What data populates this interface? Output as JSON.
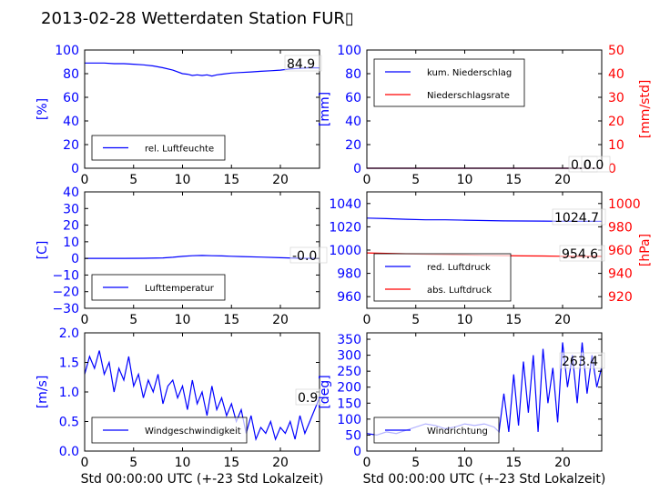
{
  "page": {
    "title": "2013-02-28 Wetterdaten Station FUR▯"
  },
  "chart_data": [
    {
      "type": "line",
      "ylabel": "[%]",
      "xlim": [
        0,
        24
      ],
      "ylim": [
        0,
        100
      ],
      "xticks": [
        "0",
        "5",
        "10",
        "15",
        "20"
      ],
      "yticks": [
        "0",
        "20",
        "40",
        "60",
        "80",
        "100"
      ],
      "legend": "lower-left",
      "annotations": [
        "84.9"
      ],
      "series": [
        {
          "name": "rel. Luftfeuchte",
          "color": "#0000ff",
          "x": [
            0,
            1,
            2,
            3,
            4,
            5,
            6,
            7,
            8,
            9,
            10,
            10.5,
            11,
            11.5,
            12,
            12.5,
            13,
            13.5,
            14,
            15,
            16,
            17,
            18,
            19,
            20,
            21,
            22,
            23,
            24
          ],
          "y": [
            89,
            89,
            89,
            88.5,
            88.5,
            88,
            87.5,
            86.5,
            85,
            83,
            80,
            79.5,
            78.5,
            79,
            78.5,
            79,
            78,
            79,
            79.5,
            80.5,
            81,
            81.5,
            82,
            82.5,
            83,
            84,
            84.5,
            85,
            84.9
          ]
        }
      ]
    },
    {
      "type": "line",
      "ylabel": "[mm]",
      "y2label": "[mm/std]",
      "xlim": [
        0,
        24
      ],
      "ylim": [
        0,
        100
      ],
      "y2lim": [
        0,
        50
      ],
      "xticks": [
        "0",
        "5",
        "10",
        "15",
        "20"
      ],
      "yticks": [
        "0",
        "20",
        "40",
        "60",
        "80",
        "100"
      ],
      "y2ticks": [
        "0",
        "10",
        "20",
        "30",
        "40",
        "50"
      ],
      "legend": "upper-left",
      "annotations": [
        "0.0",
        "0.0"
      ],
      "series": [
        {
          "name": "kum. Niederschlag",
          "color": "#0000ff",
          "x": [
            0,
            24
          ],
          "y": [
            0,
            0
          ]
        },
        {
          "name": "Niederschlagsrate",
          "color": "#ff0000",
          "axis": "right",
          "x": [
            0,
            24
          ],
          "y": [
            0,
            0
          ]
        }
      ]
    },
    {
      "type": "line",
      "ylabel": "[C]",
      "xlim": [
        0,
        24
      ],
      "ylim": [
        -30,
        40
      ],
      "xticks": [
        "0",
        "5",
        "10",
        "15",
        "20"
      ],
      "yticks": [
        "−30",
        "−20",
        "−10",
        "0",
        "10",
        "20",
        "30",
        "40"
      ],
      "legend": "lower-left",
      "annotations": [
        "-0.0"
      ],
      "series": [
        {
          "name": "Lufttemperatur",
          "color": "#0000ff",
          "x": [
            0,
            2,
            4,
            6,
            8,
            9,
            10,
            11,
            12,
            13,
            14,
            15,
            16,
            18,
            20,
            22,
            24
          ],
          "y": [
            0,
            0,
            0,
            0.1,
            0.3,
            0.7,
            1.2,
            1.6,
            1.8,
            1.6,
            1.5,
            1.3,
            1.1,
            0.8,
            0.4,
            0.1,
            0
          ]
        }
      ]
    },
    {
      "type": "line",
      "y2label": "[hPa]",
      "xlim": [
        0,
        24
      ],
      "ylim": [
        950,
        1050
      ],
      "y2lim": [
        910,
        1010
      ],
      "xticks": [
        "0",
        "5",
        "10",
        "15",
        "20"
      ],
      "yticks": [
        "960",
        "980",
        "1000",
        "1020",
        "1040"
      ],
      "y2ticks": [
        "920",
        "940",
        "960",
        "980",
        "1000"
      ],
      "legend": "lower-left",
      "annotations": [
        "1024.7",
        "954.6"
      ],
      "series": [
        {
          "name": "red. Luftdruck",
          "color": "#0000ff",
          "x": [
            0,
            2,
            4,
            6,
            8,
            10,
            12,
            14,
            16,
            18,
            20,
            22,
            24
          ],
          "y": [
            1027.5,
            1027,
            1026.5,
            1026,
            1026,
            1025.7,
            1025.4,
            1025.1,
            1025,
            1024.9,
            1024.8,
            1024.7,
            1024.7
          ]
        },
        {
          "name": "abs. Luftdruck",
          "color": "#ff0000",
          "axis": "right",
          "x": [
            0,
            2,
            4,
            6,
            8,
            10,
            12,
            14,
            16,
            18,
            20,
            22,
            24
          ],
          "y": [
            957.6,
            957.2,
            956.8,
            956.4,
            956.1,
            955.8,
            955.5,
            955.2,
            955,
            954.9,
            954.7,
            954.6,
            954.6
          ]
        }
      ]
    },
    {
      "type": "line",
      "ylabel": "[m/s]",
      "xlabel": "Std 00:00:00 UTC (+-23 Std Lokalzeit)",
      "xlim": [
        0,
        24
      ],
      "ylim": [
        0,
        2
      ],
      "xticks": [
        "0",
        "5",
        "10",
        "15",
        "20"
      ],
      "yticks": [
        "0.0",
        "0.5",
        "1.0",
        "1.5",
        "2.0"
      ],
      "legend": "lower-left",
      "annotations": [
        "0.9"
      ],
      "series": [
        {
          "name": "Windgeschwindigkeit",
          "color": "#0000ff",
          "x": [
            0,
            0.5,
            1,
            1.5,
            2,
            2.5,
            3,
            3.5,
            4,
            4.5,
            5,
            5.5,
            6,
            6.5,
            7,
            7.5,
            8,
            8.5,
            9,
            9.5,
            10,
            10.5,
            11,
            11.5,
            12,
            12.5,
            13,
            13.5,
            14,
            14.5,
            15,
            15.5,
            16,
            16.5,
            17,
            17.5,
            18,
            18.5,
            19,
            19.5,
            20,
            20.5,
            21,
            21.5,
            22,
            22.5,
            23,
            23.5,
            24
          ],
          "y": [
            1.3,
            1.6,
            1.4,
            1.7,
            1.3,
            1.5,
            1.0,
            1.4,
            1.2,
            1.6,
            1.1,
            1.3,
            0.9,
            1.2,
            1.0,
            1.3,
            0.8,
            1.1,
            1.2,
            0.9,
            1.1,
            0.7,
            1.2,
            0.8,
            1.0,
            0.6,
            1.1,
            0.7,
            0.9,
            0.6,
            0.8,
            0.5,
            0.7,
            0.3,
            0.6,
            0.2,
            0.4,
            0.3,
            0.5,
            0.2,
            0.4,
            0.3,
            0.5,
            0.2,
            0.6,
            0.3,
            0.5,
            0.7,
            0.9
          ]
        }
      ]
    },
    {
      "type": "line",
      "ylabel": "[deg]",
      "xlabel": "Std 00:00:00 UTC (+-23 Std Lokalzeit)",
      "xlim": [
        0,
        24
      ],
      "ylim": [
        0,
        370
      ],
      "xticks": [
        "0",
        "5",
        "10",
        "15",
        "20"
      ],
      "yticks": [
        "0",
        "50",
        "100",
        "150",
        "200",
        "250",
        "300",
        "350"
      ],
      "legend": "lower-left",
      "annotations": [
        "263.4"
      ],
      "series": [
        {
          "name": "Windrichtung",
          "color": "#0000ff",
          "x": [
            0,
            1,
            2,
            3,
            4,
            5,
            6,
            7,
            8,
            9,
            10,
            11,
            12,
            13,
            13.5,
            14,
            14.5,
            15,
            15.5,
            16,
            16.5,
            17,
            17.5,
            18,
            18.5,
            19,
            19.5,
            20,
            20.5,
            21,
            21.5,
            22,
            22.5,
            23,
            23.5,
            24
          ],
          "y": [
            55,
            50,
            60,
            55,
            65,
            75,
            85,
            80,
            70,
            75,
            85,
            80,
            85,
            75,
            60,
            180,
            60,
            240,
            80,
            280,
            120,
            300,
            60,
            320,
            150,
            260,
            90,
            340,
            200,
            300,
            150,
            340,
            180,
            300,
            200,
            263.4
          ]
        }
      ]
    }
  ]
}
